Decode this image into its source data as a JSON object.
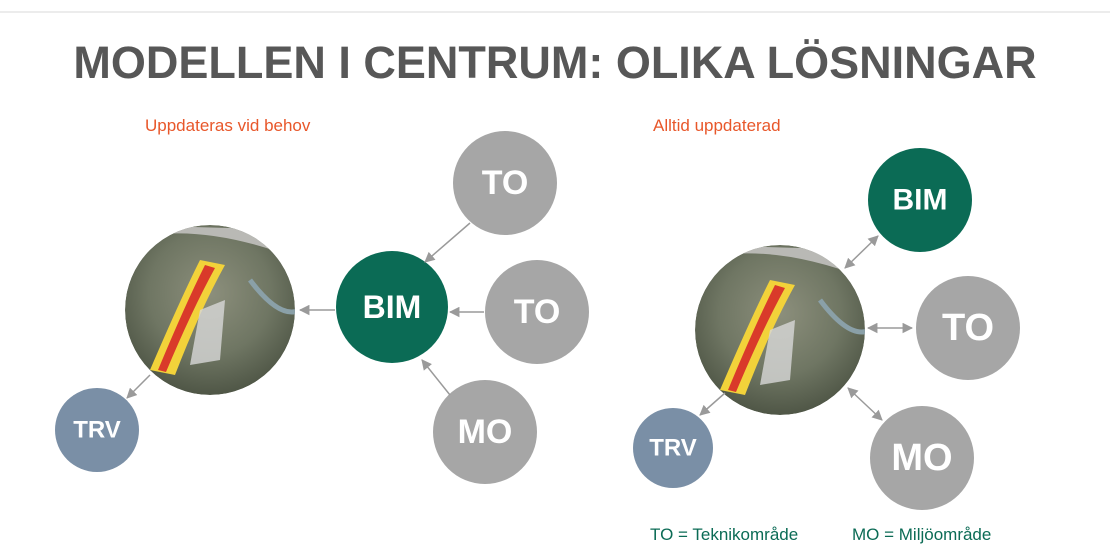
{
  "title": "MODELLEN I CENTRUM: OLIKA LÖSNINGAR",
  "left": {
    "subtitle": "Uppdateras vid behov",
    "nodes": [
      {
        "label": "TO"
      },
      {
        "label": "BIM"
      },
      {
        "label": "TO"
      },
      {
        "label": "MO"
      },
      {
        "label": "TRV"
      }
    ]
  },
  "right": {
    "subtitle": "Alltid uppdaterad",
    "nodes": [
      {
        "label": "BIM"
      },
      {
        "label": "TO"
      },
      {
        "label": "MO"
      },
      {
        "label": "TRV"
      }
    ]
  },
  "legend": [
    "TO = Teknikområde",
    "MO = Miljöområde"
  ]
}
